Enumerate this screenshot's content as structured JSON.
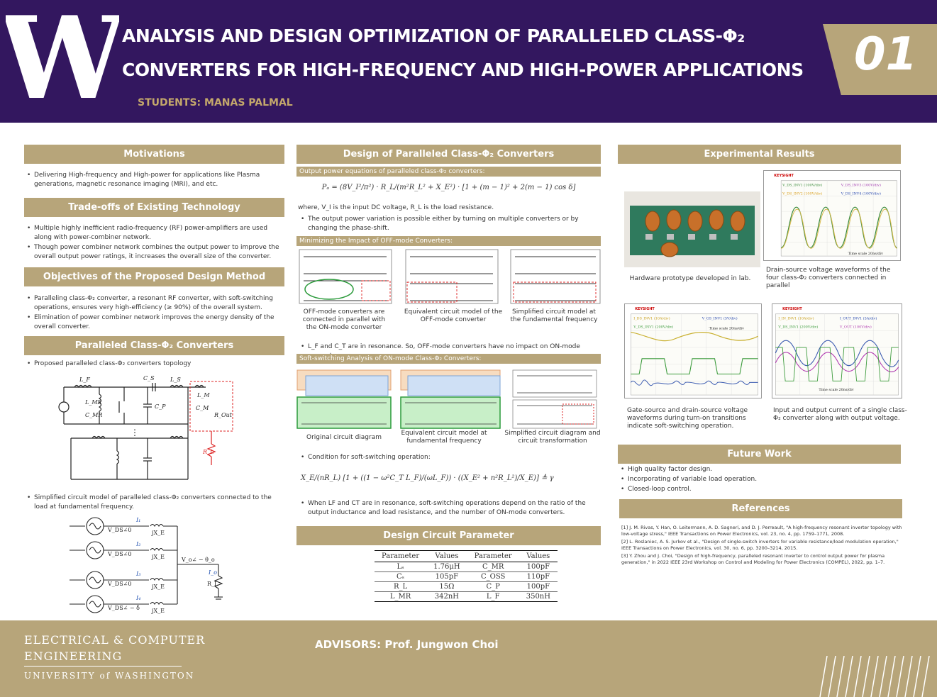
{
  "header": {
    "title_line1": "ANALYSIS AND DESIGN OPTIMIZATION OF PARALLELED CLASS-Φ₂",
    "title_line2": "CONVERTERS FOR HIGH-FREQUENCY AND HIGH-POWER APPLICATIONS",
    "students": "STUDENTS:  MANAS PALMAL",
    "badge": "01",
    "logo_letter": "W"
  },
  "colors": {
    "purple": "#33175f",
    "gold": "#b7a57a",
    "gold_text": "#c4a86b"
  },
  "sections": {
    "motivations": {
      "title": "Motivations",
      "bullets": [
        "Delivering High-frequency and High-power for applications like Plasma generations, magnetic resonance imaging (MRI), and etc."
      ]
    },
    "tradeoffs": {
      "title": "Trade-offs of Existing Technology",
      "bullets": [
        "Multiple highly inefficient radio-frequency (RF) power-amplifiers are used along with power-combiner network.",
        "Though power combiner network combines the output power to improve the overall output power ratings, it increases the overall size of the converter."
      ]
    },
    "objectives": {
      "title": "Objectives of the Proposed Design Method",
      "bullets": [
        "Paralleling class-Φ₂ converter, a resonant RF converter, with soft-switching operations, ensures very high-efficiency (≥ 90%) of the overall system.",
        "Elimination of power combiner network improves the energy density of the overall converter."
      ]
    },
    "paralleled": {
      "title": "Paralleled Class-Φ₂ Converters",
      "bullet1": "Proposed paralleled class-Φ₂ converters topology",
      "bullet2": "Simplified circuit model of paralleled class-Φ₂ converters connected to the load at fundamental frequency."
    },
    "design": {
      "title": "Design of Paralleled Class-Φ₂ Converters",
      "sub1": "Output power equations of paralleled class-Φ₂ converters:",
      "equation": "Pₒ = (8V_I²/π²) · R_L/(m²R_L² + X_E²) · [1 + (m − 1)² + 2(m − 1) cos δ]",
      "where": "where, V_I is the input DC voltage, R_L is the load resistance.",
      "bullet_var": "The output power variation is possible either by turning on multiple converters or by changing the phase-shift.",
      "sub2": "Minimizing the Impact of OFF-mode Converters:",
      "cap_a": "OFF-mode converters are connected in parallel with the ON-mode converter",
      "cap_b": "Equivalent circuit model of the OFF-mode converter",
      "cap_c": "Simplified circuit model at the fundamental frequency",
      "resonance": "L_F and C_T are in resonance. So, OFF-mode converters have no impact on ON-mode converters.",
      "sub3": "Soft-switching Analysis of ON-mode Class-Φ₂ Converters:",
      "cap_d": "Original circuit diagram",
      "cap_e": "Equivalent circuit model at fundamental frequency",
      "cap_f": "Simplified circuit diagram and circuit transformation",
      "condition": "Condition for soft-switching operation:",
      "cond_eq": "X_E/(nR_L) [1 + ((1 − ω²C_T L_F)/(ωL_F)) · ((X_E² + n²R_L²)/X_E)] ≜ γ",
      "conclusion": "When LF and CT are in resonance, soft-switching operations depend on the ratio of the output inductance and load resistance, and the number of ON-mode converters."
    },
    "params": {
      "title": "Design Circuit Parameter",
      "headers": [
        "Parameter",
        "Values",
        "Parameter",
        "Values"
      ],
      "rows": [
        [
          "Lₛ",
          "1.76μH",
          "C_MR",
          "100pF"
        ],
        [
          "Cₛ",
          "105pF",
          "C_OSS",
          "110pF"
        ],
        [
          "R_L",
          "15Ω",
          "C_P",
          "100pF"
        ],
        [
          "L_MR",
          "342nH",
          "L_F",
          "350nH"
        ]
      ]
    },
    "experimental": {
      "title": "Experimental Results",
      "cap_photo": "Hardware prototype developed in lab.",
      "cap_scope1": "Drain-source voltage waveforms of the four class-Φ₂ converters connected in parallel",
      "cap_scope2": "Gate-source and drain-source voltage waveforms during turn-on transitions indicate soft-switching operation.",
      "cap_scope3": "Input and output current of a single class-Φ₂ converter along with output voltage.",
      "scope_brand": "KEYSIGHT",
      "scope1_legend": [
        "V_DS_INV1 (100V/div)",
        "V_DS_INV2 (100V/div)",
        "V_DS_INV3 (100V/div)",
        "V_DS_INV4 (100V/div)"
      ],
      "scope1_time": "Time scale 20ns/div",
      "scope2_legend": [
        "I_DS_INV1 (10A/div)",
        "V_DS_INV1 (200V/div)",
        "V_GS_INV1 (5V/div)"
      ],
      "scope2_time": "Time scale 20ns/div",
      "scope3_legend": [
        "I_IN_INV1 (10A/div)",
        "V_DS_INV1 (200V/div)",
        "I_OUT_INV1 (5A/div)",
        "V_OUT (100V/div)"
      ],
      "scope3_time": "Time scale 20ns/div"
    },
    "future": {
      "title": "Future Work",
      "bullets": [
        "High quality factor design.",
        "Incorporating of variable load operation.",
        "Closed-loop control."
      ]
    },
    "references": {
      "title": "References",
      "items": [
        "[1] J. M. Rivas, Y. Han, O. Leitermann, A. D. Sagneri, and D. J. Perreault, \"A high-frequency resonant inverter topology with low-voltage stress,\" IEEE Transactions on Power Electronics, vol. 23, no. 4, pp. 1759–1771, 2008.",
        "[2] L. Roslaniec, A. S. Jurkov et al., \"Design of single-switch inverters for variable resistance/load modulation operation,\" IEEE Transactions on Power Electronics, vol. 30, no. 6, pp. 3200–3214, 2015.",
        "[3] Y. Zhou and J. Choi, \"Design of high-frequency, paralleled resonant inverter to control output power for plasma generation,\" in 2022 IEEE 23rd Workshop on Control and Modeling for Power Electronics (COMPEL), 2022, pp. 1–7."
      ]
    }
  },
  "circuit_labels": {
    "lf": "L_F",
    "ls": "L_S",
    "cs": "C_S",
    "cp": "C_P",
    "lmr": "L_MR",
    "cmr": "C_MR",
    "lm": "L_M",
    "cm": "C_M",
    "rout": "R_Out",
    "rl": "R_L",
    "vds0": "V_DS∠0",
    "vdsd": "V_DS∠ − δ",
    "jxe": "jX_E",
    "vo": "V_o∠ − θ_o",
    "i1": "I₁",
    "i2": "I₂",
    "i3": "I₃",
    "i4": "I₄",
    "io": "I_o"
  },
  "footer": {
    "ece_line1": "ELECTRICAL & COMPUTER",
    "ece_line2": "ENGINEERING",
    "uw": "UNIVERSITY of WASHINGTON",
    "advisors": "ADVISORS:  Prof. Jungwon Choi"
  }
}
